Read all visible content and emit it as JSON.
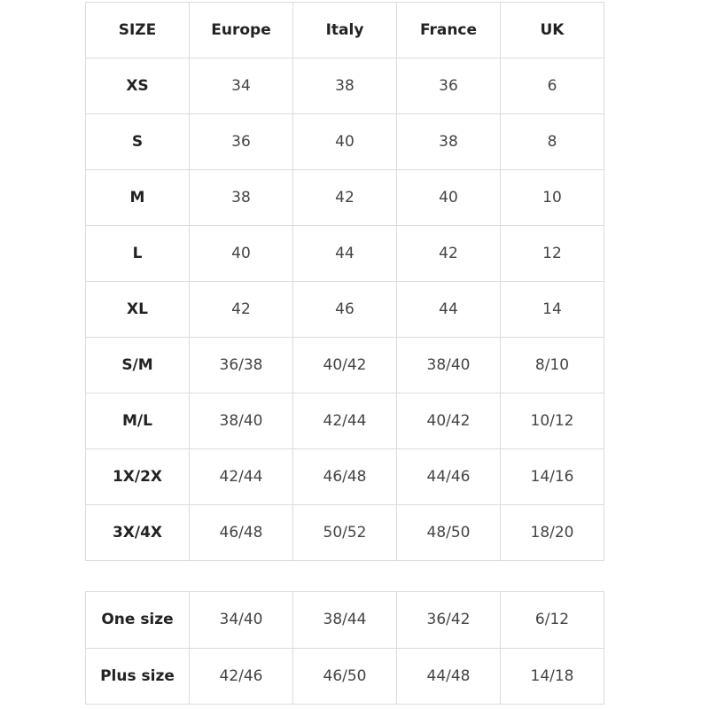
{
  "size_table": {
    "header": [
      "SIZE",
      "Europe",
      "Italy",
      "France",
      "UK"
    ],
    "rows": [
      [
        "XS",
        "34",
        "38",
        "36",
        "6"
      ],
      [
        "S",
        "36",
        "40",
        "38",
        "8"
      ],
      [
        "M",
        "38",
        "42",
        "40",
        "10"
      ],
      [
        "L",
        "40",
        "44",
        "42",
        "12"
      ],
      [
        "XL",
        "42",
        "46",
        "44",
        "14"
      ],
      [
        "S/M",
        "36/38",
        "40/42",
        "38/40",
        "8/10"
      ],
      [
        "M/L",
        "38/40",
        "42/44",
        "40/42",
        "10/12"
      ],
      [
        "1X/2X",
        "42/44",
        "46/48",
        "44/46",
        "14/16"
      ],
      [
        "3X/4X",
        "46/48",
        "50/52",
        "48/50",
        "18/20"
      ]
    ]
  },
  "extra_table": {
    "rows": [
      [
        "One size",
        "34/40",
        "38/44",
        "36/42",
        "6/12"
      ],
      [
        "Plus size",
        "42/46",
        "46/50",
        "44/48",
        "14/18"
      ]
    ]
  }
}
